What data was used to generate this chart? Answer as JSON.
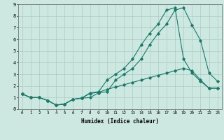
{
  "xlabel": "Humidex (Indice chaleur)",
  "bg_color": "#cce8e0",
  "grid_color": "#aaccC4",
  "line_color": "#1a7a6a",
  "xlim": [
    -0.5,
    23.5
  ],
  "ylim": [
    0,
    9
  ],
  "xticks": [
    0,
    1,
    2,
    3,
    4,
    5,
    6,
    7,
    8,
    9,
    10,
    11,
    12,
    13,
    14,
    15,
    16,
    17,
    18,
    19,
    20,
    21,
    22,
    23
  ],
  "yticks": [
    0,
    1,
    2,
    3,
    4,
    5,
    6,
    7,
    8,
    9
  ],
  "series1_x": [
    0,
    1,
    2,
    3,
    4,
    5,
    6,
    7,
    8,
    9,
    10,
    11,
    12,
    13,
    14,
    15,
    16,
    17,
    18,
    19,
    20,
    21,
    22,
    23
  ],
  "series1_y": [
    1.3,
    1.0,
    1.0,
    0.75,
    0.35,
    0.45,
    0.85,
    0.95,
    1.0,
    1.4,
    1.5,
    2.5,
    3.0,
    3.5,
    4.3,
    5.5,
    6.5,
    7.3,
    8.5,
    8.7,
    7.2,
    5.9,
    3.1,
    2.4
  ],
  "series2_x": [
    0,
    1,
    2,
    3,
    4,
    5,
    6,
    7,
    8,
    9,
    10,
    11,
    12,
    13,
    14,
    15,
    16,
    17,
    18,
    19,
    20,
    21,
    22,
    23
  ],
  "series2_y": [
    1.3,
    1.0,
    1.0,
    0.75,
    0.35,
    0.45,
    0.85,
    0.95,
    1.4,
    1.5,
    2.5,
    3.0,
    3.5,
    4.3,
    5.5,
    6.5,
    7.3,
    8.5,
    8.7,
    4.3,
    3.1,
    2.4,
    1.8,
    1.8
  ],
  "series3_x": [
    0,
    1,
    2,
    3,
    4,
    5,
    6,
    7,
    8,
    9,
    10,
    11,
    12,
    13,
    14,
    15,
    16,
    17,
    18,
    19,
    20,
    21,
    22,
    23
  ],
  "series3_y": [
    1.3,
    1.0,
    1.0,
    0.75,
    0.35,
    0.45,
    0.85,
    0.95,
    1.35,
    1.45,
    1.7,
    1.9,
    2.1,
    2.3,
    2.5,
    2.7,
    2.9,
    3.1,
    3.3,
    3.5,
    3.3,
    2.5,
    1.8,
    1.8
  ]
}
